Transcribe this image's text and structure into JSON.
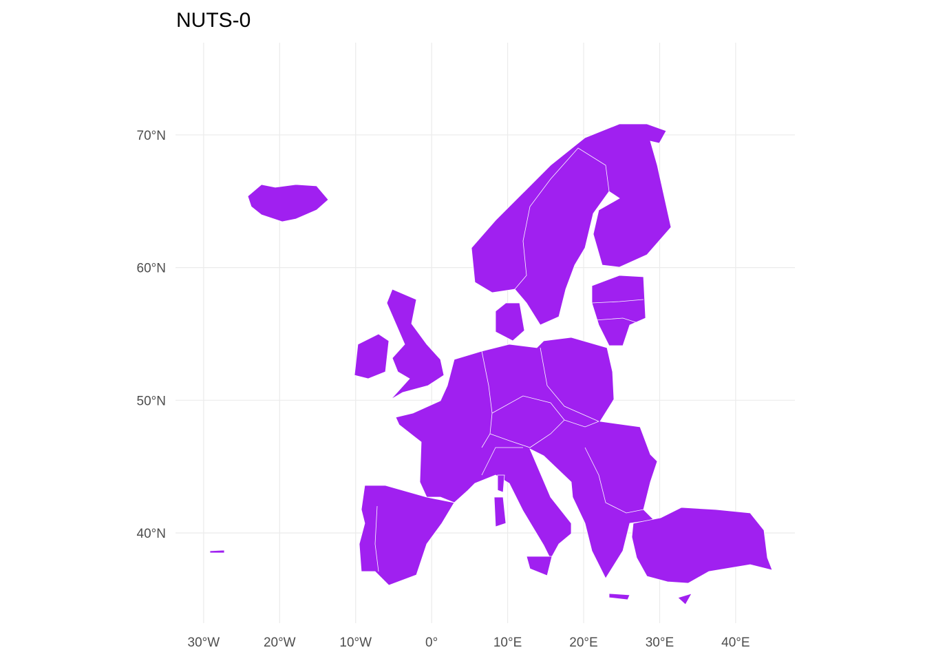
{
  "chart_data": {
    "type": "map",
    "title": "NUTS-0",
    "xlim": [
      -33.7,
      47.8
    ],
    "ylim": [
      33.2,
      76.95
    ],
    "xticks": [
      {
        "value": -30,
        "label": "30°W"
      },
      {
        "value": -20,
        "label": "20°W"
      },
      {
        "value": -10,
        "label": "10°W"
      },
      {
        "value": 0,
        "label": "0°"
      },
      {
        "value": 10,
        "label": "10°E"
      },
      {
        "value": 20,
        "label": "20°E"
      },
      {
        "value": 30,
        "label": "30°E"
      },
      {
        "value": 40,
        "label": "40°E"
      }
    ],
    "yticks": [
      {
        "value": 40,
        "label": "40°N"
      },
      {
        "value": 50,
        "label": "50°N"
      },
      {
        "value": 60,
        "label": "60°N"
      },
      {
        "value": 70,
        "label": "70°N"
      }
    ],
    "grid": true,
    "color": "#a020f0"
  }
}
